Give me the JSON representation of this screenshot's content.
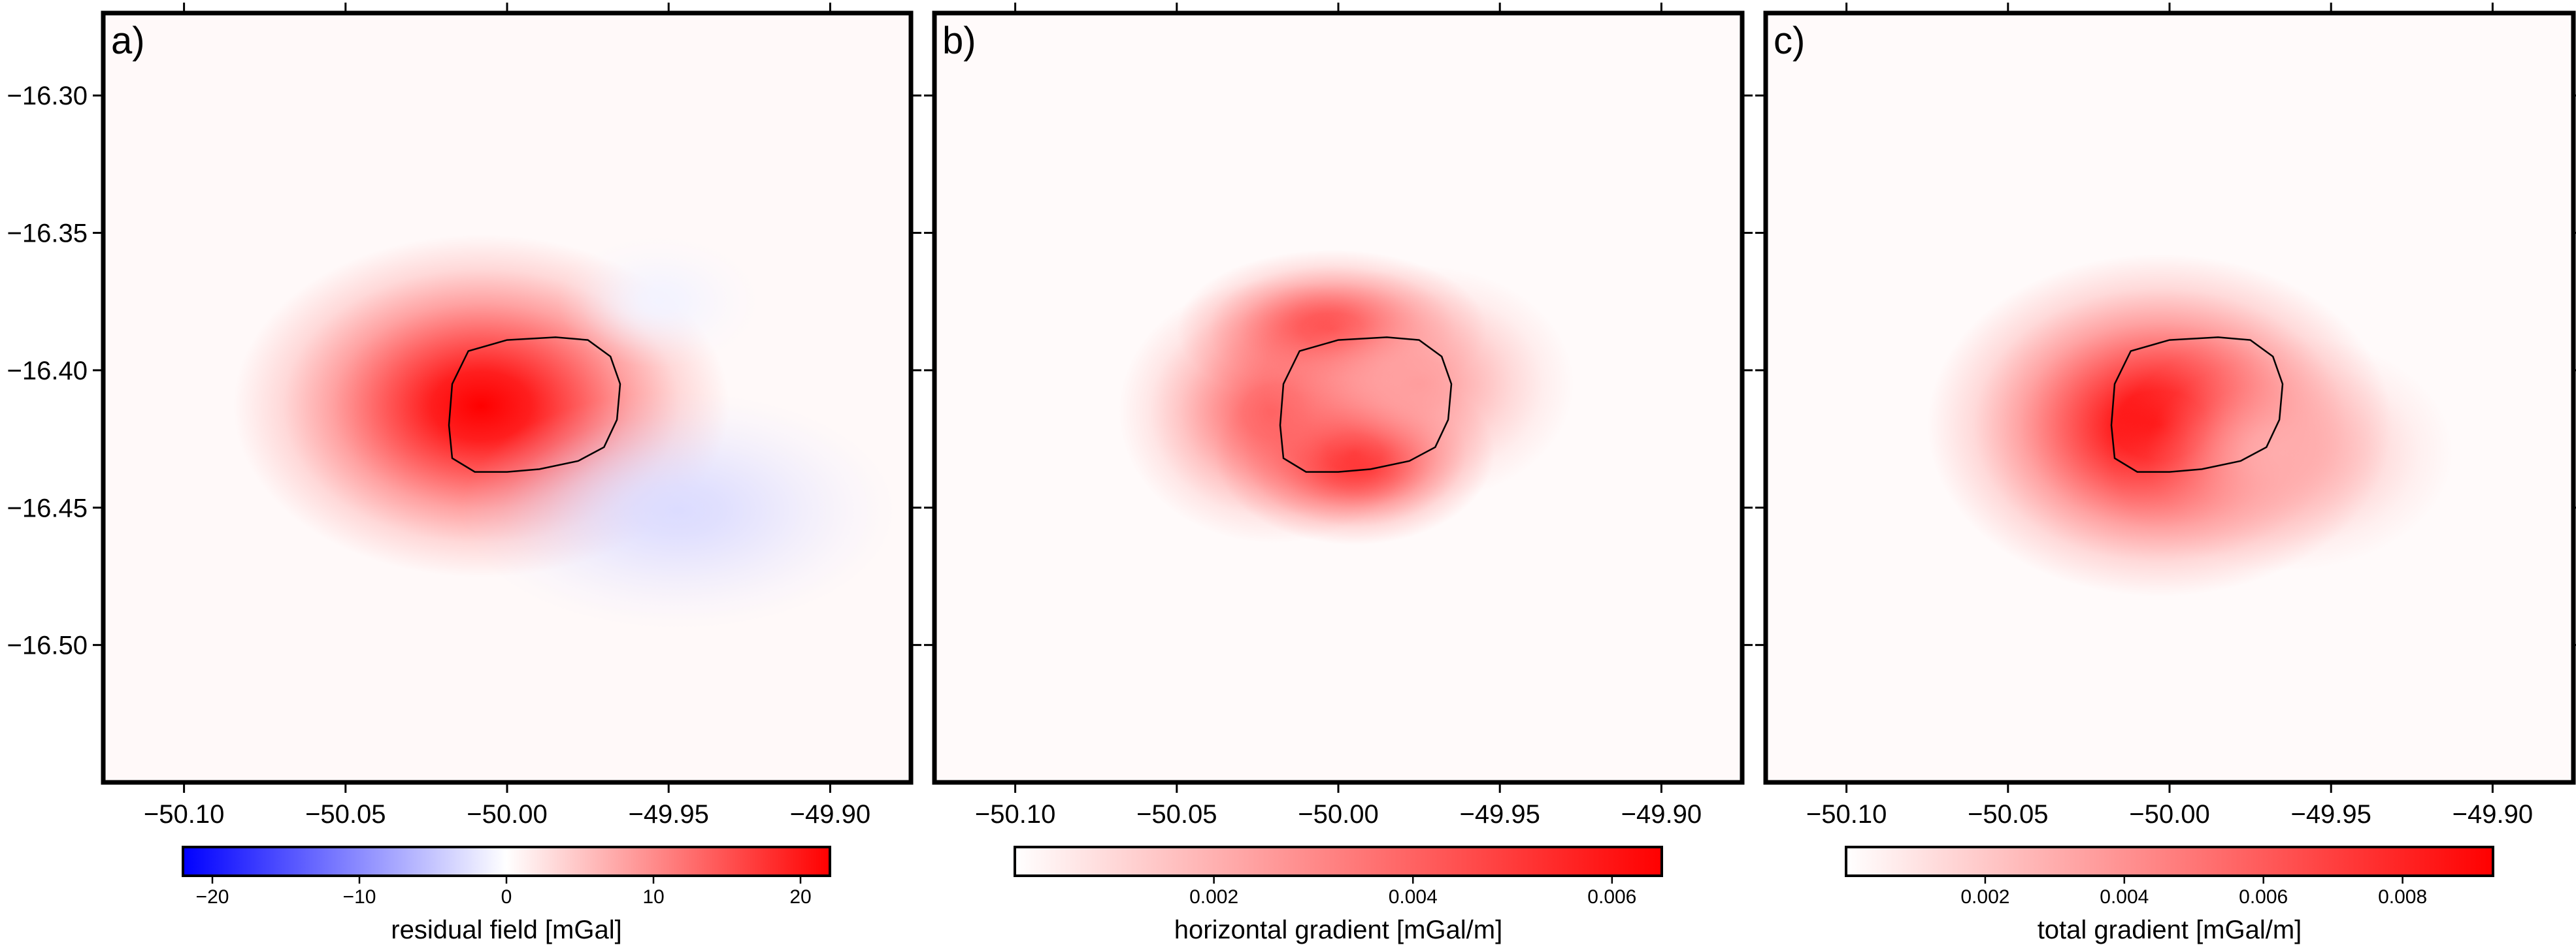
{
  "figure": {
    "panels": [
      {
        "label": "a)",
        "colorbar_label": "residual field [mGal]"
      },
      {
        "label": "b)",
        "colorbar_label": "horizontal gradient [mGal/m]"
      },
      {
        "label": "c)",
        "colorbar_label": "total gradient [mGal/m]"
      }
    ]
  },
  "colors": {
    "negative": "#0000ff",
    "neutral": "#ffffff",
    "positive": "#ff0000",
    "frame": "#000000"
  },
  "chart_data": [
    {
      "type": "heatmap",
      "title": "a)",
      "xlabel": "",
      "ylabel": "",
      "xlim": [
        -50.125,
        -49.875
      ],
      "ylim": [
        -16.55,
        -16.27
      ],
      "xticks": [
        -50.1,
        -50.05,
        -50.0,
        -49.95,
        -49.9
      ],
      "xtick_labels": [
        "−50.10",
        "−50.05",
        "−50.00",
        "−49.95",
        "−49.90"
      ],
      "yticks": [
        -16.3,
        -16.35,
        -16.4,
        -16.45,
        -16.5
      ],
      "ytick_labels": [
        "−16.30",
        "−16.35",
        "−16.40",
        "−16.45",
        "−16.50"
      ],
      "colorbar": {
        "label": "residual field [mGal]",
        "range": [
          -22,
          22
        ],
        "ticks": [
          -20,
          -10,
          0,
          10,
          20
        ],
        "tick_labels": [
          "−20",
          "−10",
          "0",
          "10",
          "20"
        ],
        "colors": [
          "#0000ff",
          "#ffffff",
          "#ff0000"
        ]
      },
      "features": [
        {
          "kind": "high",
          "x": -50.008,
          "y": -16.413,
          "value": 22,
          "sx": 0.032,
          "sy": 0.026
        },
        {
          "kind": "low",
          "x": -49.947,
          "y": -16.451,
          "value": -3,
          "sx": 0.028,
          "sy": 0.018
        },
        {
          "kind": "low",
          "x": -49.953,
          "y": -16.375,
          "value": -1,
          "sx": 0.013,
          "sy": 0.01
        }
      ]
    },
    {
      "type": "heatmap",
      "title": "b)",
      "xlabel": "",
      "ylabel": "",
      "xlim": [
        -50.125,
        -49.875
      ],
      "ylim": [
        -16.55,
        -16.27
      ],
      "xticks": [
        -50.1,
        -50.05,
        -50.0,
        -49.95,
        -49.9
      ],
      "xtick_labels": [
        "−50.10",
        "−50.05",
        "−50.00",
        "−49.95",
        "−49.90"
      ],
      "yticks": [
        -16.3,
        -16.35,
        -16.4,
        -16.45,
        -16.5
      ],
      "colorbar": {
        "label": "horizontal gradient [mGal/m]",
        "range": [
          0,
          0.0065
        ],
        "ticks": [
          0.002,
          0.004,
          0.006
        ],
        "tick_labels": [
          "0.002",
          "0.004",
          "0.006"
        ],
        "colors": [
          "#ffffff",
          "#ff0000"
        ]
      },
      "features": [
        {
          "kind": "high",
          "x": -49.995,
          "y": -16.43,
          "value": 0.0065,
          "sx": 0.018,
          "sy": 0.014
        },
        {
          "kind": "high",
          "x": -50.002,
          "y": -16.385,
          "value": 0.005,
          "sx": 0.02,
          "sy": 0.012
        },
        {
          "kind": "high",
          "x": -50.02,
          "y": -16.415,
          "value": 0.004,
          "sx": 0.02,
          "sy": 0.02
        },
        {
          "kind": "high",
          "x": -49.975,
          "y": -16.405,
          "value": 0.0025,
          "sx": 0.02,
          "sy": 0.018
        }
      ]
    },
    {
      "type": "heatmap",
      "title": "c)",
      "xlabel": "",
      "ylabel": "",
      "xlim": [
        -50.125,
        -49.875
      ],
      "ylim": [
        -16.55,
        -16.27
      ],
      "xticks": [
        -50.1,
        -50.05,
        -50.0,
        -49.95,
        -49.9
      ],
      "xtick_labels": [
        "−50.10",
        "−50.05",
        "−50.00",
        "−49.95",
        "−49.90"
      ],
      "yticks": [
        -16.3,
        -16.35,
        -16.4,
        -16.45,
        -16.5
      ],
      "colorbar": {
        "label": "total gradient [mGal/m]",
        "range": [
          0,
          0.0093
        ],
        "ticks": [
          0.002,
          0.004,
          0.006,
          0.008
        ],
        "tick_labels": [
          "0.002",
          "0.004",
          "0.006",
          "0.008"
        ],
        "colors": [
          "#ffffff",
          "#ff0000"
        ]
      },
      "features": [
        {
          "kind": "high",
          "x": -50.003,
          "y": -16.42,
          "value": 0.0093,
          "sx": 0.03,
          "sy": 0.026
        },
        {
          "kind": "high",
          "x": -49.965,
          "y": -16.43,
          "value": 0.003,
          "sx": 0.022,
          "sy": 0.018
        }
      ]
    }
  ],
  "outline": {
    "lon": [
      -50.0,
      -49.985,
      -49.975,
      -49.968,
      -49.965,
      -49.966,
      -49.97,
      -49.978,
      -49.99,
      -50.0,
      -50.01,
      -50.017,
      -50.018,
      -50.017,
      -50.012,
      -50.0
    ],
    "lat": [
      -16.389,
      -16.388,
      -16.389,
      -16.395,
      -16.405,
      -16.418,
      -16.428,
      -16.433,
      -16.436,
      -16.437,
      -16.437,
      -16.432,
      -16.42,
      -16.405,
      -16.393,
      -16.389
    ]
  }
}
